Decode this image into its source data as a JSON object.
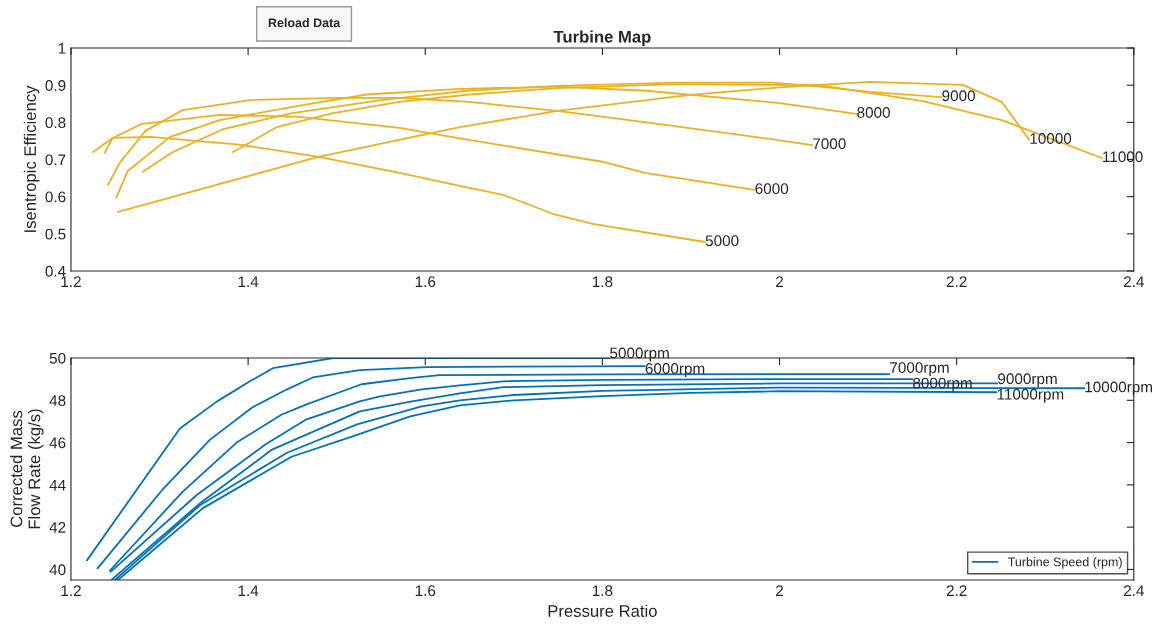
{
  "chart_data": [
    {
      "type": "line",
      "title": "Turbine Map",
      "ylabel": "Isentropic Efficiency",
      "xlim": [
        1.2,
        2.4
      ],
      "xticks": [
        1.2,
        1.4,
        1.6,
        1.8,
        2,
        2.2,
        2.4
      ],
      "ylim": [
        0.4,
        1
      ],
      "yticks": [
        0.4,
        0.5,
        0.6,
        0.7,
        0.8,
        0.9,
        1
      ],
      "grid": false,
      "legend": false,
      "series": [
        {
          "color": "#edb120",
          "x": [
            1.225,
            1.247,
            1.29,
            1.39,
            1.48,
            1.571,
            1.639,
            1.688,
            1.744,
            1.789,
            1.916
          ],
          "values": [
            0.72,
            0.758,
            0.761,
            0.74,
            0.707,
            0.664,
            0.629,
            0.605,
            0.554,
            0.527,
            0.478
          ]
        },
        {
          "color": "#edb120",
          "x": [
            1.238,
            1.247,
            1.28,
            1.368,
            1.458,
            1.571,
            1.639,
            1.8,
            1.848,
            1.972
          ],
          "values": [
            0.718,
            0.758,
            0.796,
            0.82,
            0.815,
            0.785,
            0.757,
            0.694,
            0.664,
            0.618
          ]
        },
        {
          "color": "#edb120",
          "x": [
            1.242,
            1.255,
            1.284,
            1.326,
            1.402,
            1.5,
            1.571,
            1.65,
            1.749,
            1.85,
            1.997,
            2.037
          ],
          "values": [
            0.632,
            0.691,
            0.777,
            0.833,
            0.86,
            0.866,
            0.866,
            0.855,
            0.831,
            0.8,
            0.753,
            0.739
          ]
        },
        {
          "color": "#edb120",
          "x": [
            1.251,
            1.264,
            1.312,
            1.368,
            1.458,
            1.534,
            1.639,
            1.749,
            1.85,
            2.0,
            2.087
          ],
          "values": [
            0.597,
            0.669,
            0.761,
            0.806,
            0.845,
            0.875,
            0.89,
            0.896,
            0.885,
            0.852,
            0.823
          ]
        },
        {
          "color": "#edb120",
          "x": [
            1.281,
            1.315,
            1.372,
            1.45,
            1.55,
            1.647,
            1.749,
            1.884,
            1.992,
            2.045,
            2.102,
            2.183
          ],
          "values": [
            0.667,
            0.72,
            0.782,
            0.825,
            0.86,
            0.885,
            0.898,
            0.907,
            0.907,
            0.896,
            0.882,
            0.868
          ]
        },
        {
          "color": "#edb120",
          "x": [
            1.253,
            1.479,
            1.639,
            1.749,
            1.899,
            2.004,
            2.102,
            2.207,
            2.251,
            2.282
          ],
          "values": [
            0.559,
            0.707,
            0.787,
            0.831,
            0.874,
            0.895,
            0.909,
            0.901,
            0.855,
            0.753
          ]
        },
        {
          "color": "#edb120",
          "x": [
            1.383,
            1.432,
            1.496,
            1.571,
            1.65,
            1.749,
            1.884,
            2.045,
            2.162,
            2.251,
            2.364
          ],
          "values": [
            0.72,
            0.787,
            0.825,
            0.855,
            0.875,
            0.892,
            0.903,
            0.9,
            0.857,
            0.806,
            0.704
          ]
        }
      ],
      "annotations": [
        "Reload Data",
        {
          "text": "5000",
          "x": 1.916,
          "y": 0.478
        },
        {
          "text": "6000",
          "x": 1.972,
          "y": 0.618
        },
        {
          "text": "7000",
          "x": 2.037,
          "y": 0.739
        },
        {
          "text": "8000",
          "x": 2.087,
          "y": 0.823
        },
        {
          "text": "9000",
          "x": 2.183,
          "y": 0.868
        },
        {
          "text": "10000",
          "x": 2.282,
          "y": 0.753
        },
        {
          "text": "11000",
          "x": 2.364,
          "y": 0.704
        }
      ]
    },
    {
      "type": "line",
      "xlabel": "Pressure Ratio",
      "ylabel": "Corrected Mass\nFlow Rate (kg/s)",
      "xlim": [
        1.2,
        2.4
      ],
      "xticks": [
        1.2,
        1.4,
        1.6,
        1.8,
        2,
        2.2,
        2.4
      ],
      "ylim": [
        39.5,
        50
      ],
      "yticks": [
        40,
        42,
        44,
        46,
        48,
        50
      ],
      "grid": false,
      "legend": "bottom right",
      "series": [
        {
          "name": "Turbine Speed (rpm)",
          "color": "#0072bd",
          "x": [
            1.218,
            1.323,
            1.365,
            1.402,
            1.428,
            1.496,
            1.808
          ],
          "values": [
            40.43,
            46.67,
            47.95,
            48.9,
            49.52,
            50.0,
            50.0
          ]
        },
        {
          "color": "#0072bd",
          "x": [
            1.23,
            1.303,
            1.357,
            1.405,
            1.444,
            1.473,
            1.526,
            1.602,
            1.848
          ],
          "values": [
            40.05,
            43.76,
            46.14,
            47.67,
            48.52,
            49.08,
            49.43,
            49.57,
            49.62
          ]
        },
        {
          "color": "#0072bd",
          "x": [
            1.244,
            1.326,
            1.387,
            1.438,
            1.466,
            1.528,
            1.583,
            1.616,
            1.8,
            2.0,
            2.124
          ],
          "values": [
            39.95,
            43.67,
            46.0,
            47.33,
            47.81,
            48.76,
            49.05,
            49.19,
            49.23,
            49.24,
            49.24
          ]
        },
        {
          "color": "#0072bd",
          "x": [
            1.245,
            1.342,
            1.419,
            1.466,
            1.526,
            1.549,
            1.596,
            1.639,
            1.688,
            1.8,
            2.0,
            2.15
          ],
          "values": [
            39.9,
            43.52,
            45.9,
            47.1,
            47.95,
            48.19,
            48.52,
            48.71,
            48.9,
            48.97,
            49.0,
            49.0
          ]
        },
        {
          "color": "#0072bd",
          "x": [
            1.246,
            1.346,
            1.427,
            1.526,
            1.585,
            1.639,
            1.688,
            1.8,
            2.0,
            2.246
          ],
          "values": [
            39.52,
            43.14,
            45.67,
            47.48,
            47.95,
            48.33,
            48.62,
            48.72,
            48.8,
            48.8
          ]
        },
        {
          "color": "#0072bd",
          "x": [
            1.25,
            1.346,
            1.444,
            1.523,
            1.596,
            1.639,
            1.7,
            1.8,
            2.0,
            2.344
          ],
          "values": [
            39.52,
            43.05,
            45.52,
            46.86,
            47.71,
            48.0,
            48.25,
            48.45,
            48.6,
            48.57
          ]
        },
        {
          "color": "#0072bd",
          "x": [
            1.253,
            1.349,
            1.449,
            1.518,
            1.583,
            1.639,
            1.7,
            1.8,
            1.9,
            2.0,
            2.245
          ],
          "values": [
            39.5,
            42.9,
            45.33,
            46.29,
            47.24,
            47.76,
            48.0,
            48.2,
            48.35,
            48.43,
            48.38
          ]
        }
      ],
      "annotations": [
        {
          "text": "5000rpm",
          "x": 1.808,
          "y": 50.0
        },
        {
          "text": "6000rpm",
          "x": 1.848,
          "y": 49.62
        },
        {
          "text": "7000rpm",
          "x": 2.124,
          "y": 49.24
        },
        {
          "text": "8000rpm",
          "x": 2.15,
          "y": 49.0
        },
        {
          "text": "9000rpm",
          "x": 2.246,
          "y": 48.8
        },
        {
          "text": "10000rpm",
          "x": 2.344,
          "y": 48.57
        },
        {
          "text": "11000rpm",
          "x": 2.245,
          "y": 48.38
        }
      ]
    }
  ]
}
